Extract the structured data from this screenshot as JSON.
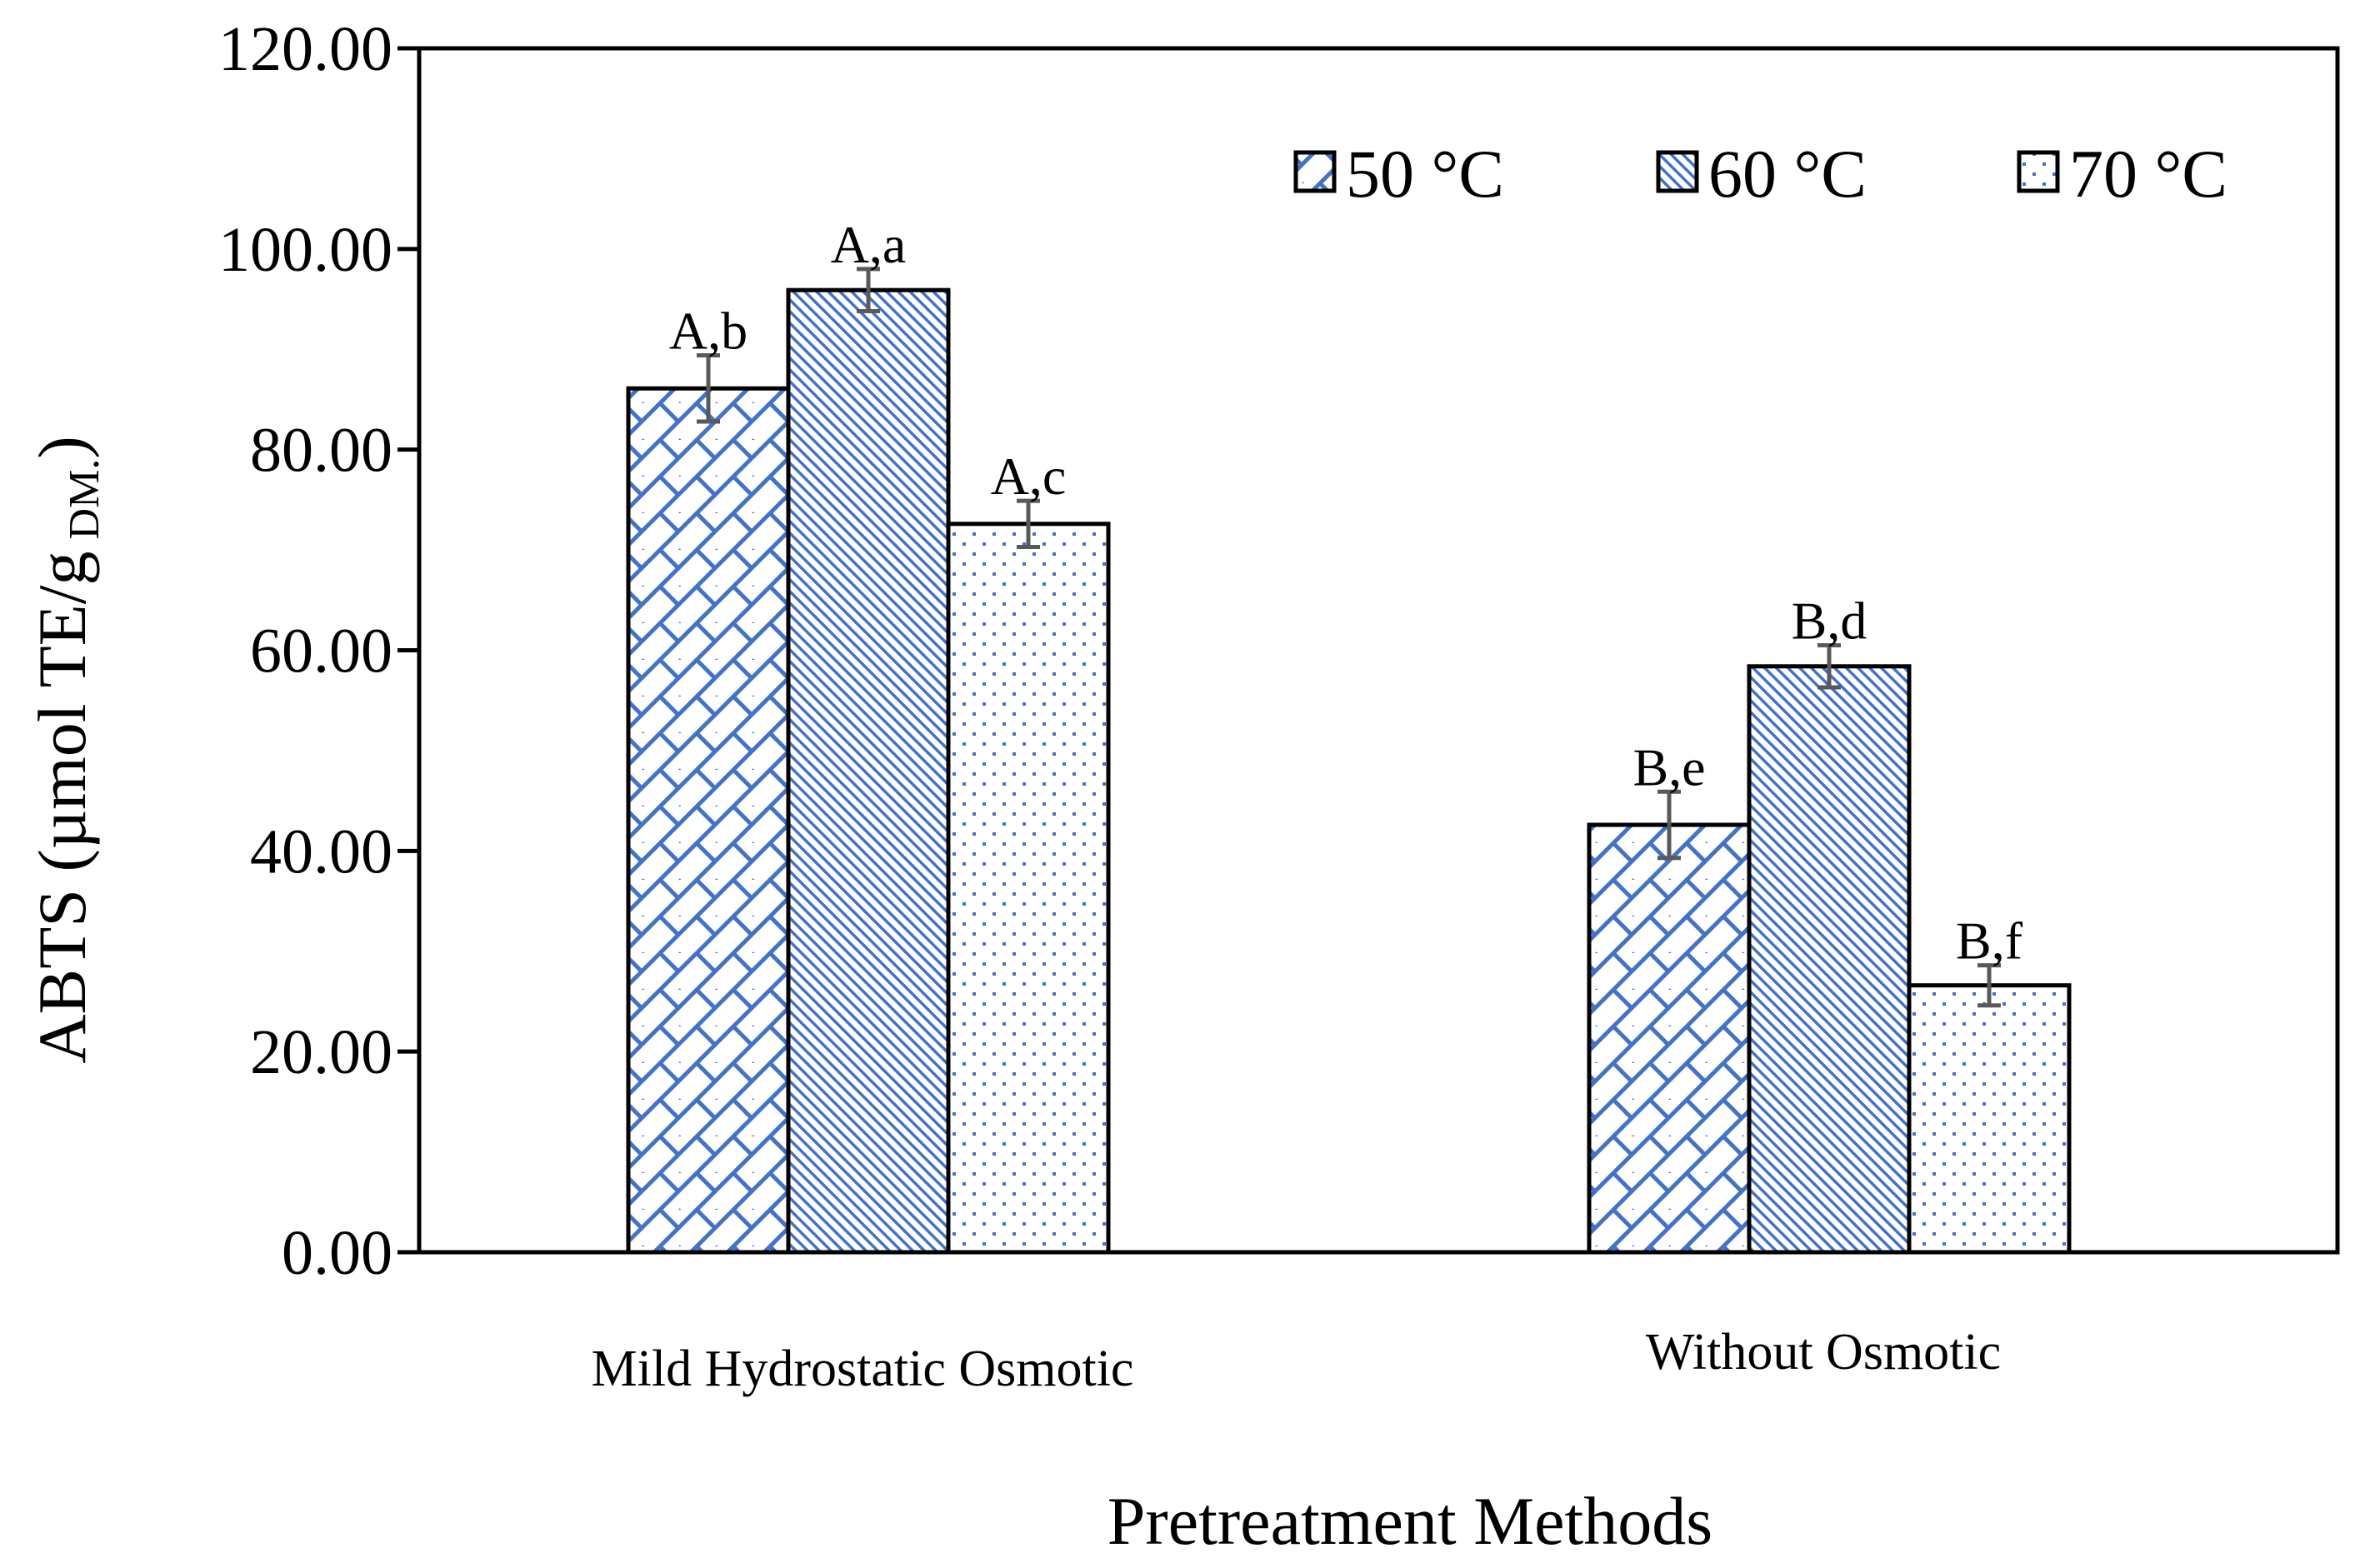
{
  "chart_data": {
    "type": "bar",
    "categories": [
      "Mild Hydrostatic Osmotic",
      "Without Osmotic"
    ],
    "series": [
      {
        "name": "50 °C",
        "pattern": "weave",
        "values": [
          86.1,
          42.6
        ],
        "errors": [
          3.3,
          3.3
        ],
        "labels": [
          "A,b",
          "B,e"
        ]
      },
      {
        "name": "60 °C",
        "pattern": "diagonal",
        "values": [
          95.9,
          58.4
        ],
        "errors": [
          2.1,
          2.1
        ],
        "labels": [
          "A,a",
          "B,d"
        ]
      },
      {
        "name": "70 °C",
        "pattern": "dots",
        "values": [
          72.6,
          26.6
        ],
        "errors": [
          2.3,
          2.0
        ],
        "labels": [
          "A,c",
          "B,f"
        ]
      }
    ],
    "ylim": [
      0,
      120
    ],
    "yticks": [
      "0.00",
      "20.00",
      "40.00",
      "60.00",
      "80.00",
      "100.00",
      "120.00"
    ],
    "xlabel": "Pretreatment Methods",
    "ylabel_main": "ABTS (µmol TE/g",
    "ylabel_sub": "DM.",
    "ylabel_close": ")",
    "legend_position": "top-right",
    "colors": {
      "pattern": "#4472c4",
      "error_bar": "#595959",
      "axis": "#000000"
    }
  }
}
